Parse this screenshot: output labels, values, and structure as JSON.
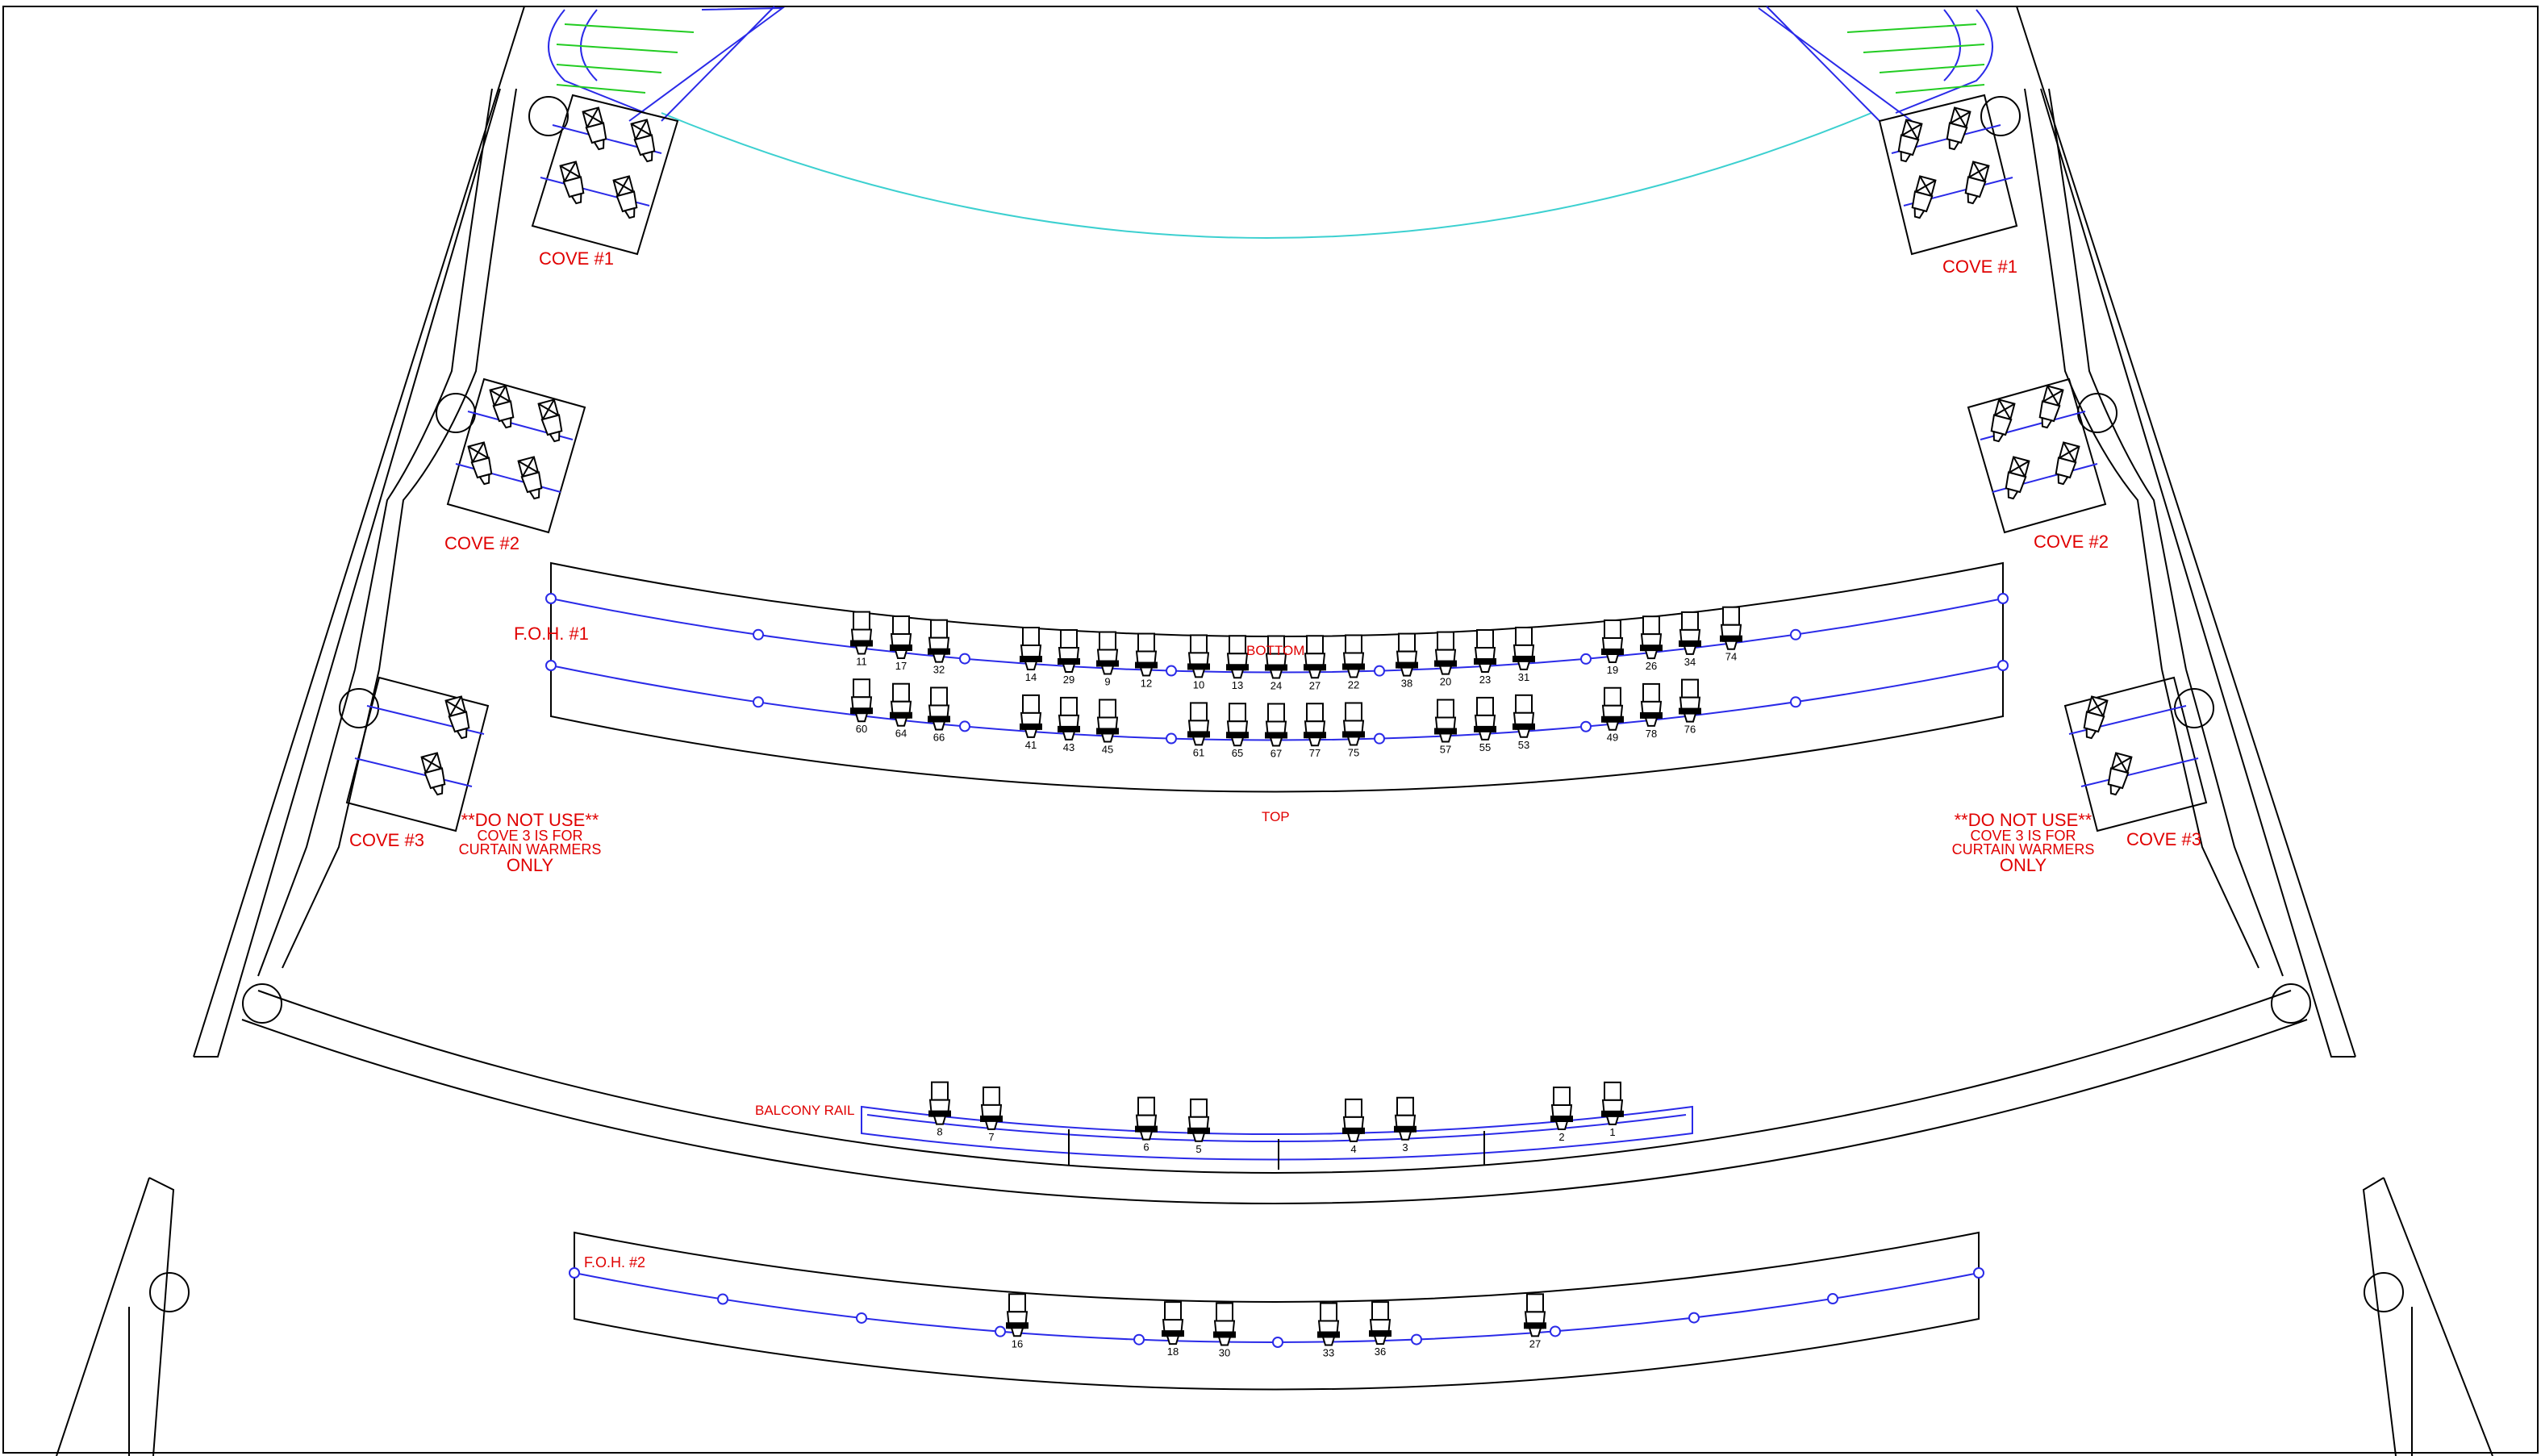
{
  "labels": {
    "cove1_left": "COVE #1",
    "cove1_right": "COVE #1",
    "cove2_left": "COVE #2",
    "cove2_right": "COVE #2",
    "cove3_left": "COVE #3",
    "cove3_right": "COVE #3",
    "foh1": "F.O.H. #1",
    "foh2": "F.O.H. #2",
    "bottom": "BOTTOM",
    "top": "TOP",
    "balcony_rail": "BALCONY RAIL",
    "warning_left": [
      "**DO NOT USE**",
      "COVE 3 IS FOR",
      "CURTAIN WARMERS",
      "ONLY"
    ],
    "warning_right": [
      "**DO NOT USE**",
      "COVE 3 IS FOR",
      "CURTAIN WARMERS",
      "ONLY"
    ]
  },
  "fixtures": {
    "foh1_bottom": [
      "11",
      "17",
      "32",
      "14",
      "29",
      "9",
      "12",
      "10",
      "13",
      "24",
      "27",
      "22",
      "38",
      "20",
      "23",
      "31",
      "19",
      "26",
      "34",
      "74"
    ],
    "foh1_top": [
      "60",
      "64",
      "66",
      "41",
      "43",
      "45",
      "61",
      "65",
      "67",
      "77",
      "75",
      "57",
      "55",
      "53",
      "49",
      "78",
      "76"
    ],
    "balcony_rail": [
      "8",
      "7",
      "6",
      "5",
      "4",
      "3",
      "2",
      "1"
    ],
    "foh2": [
      "16",
      "18",
      "30",
      "33",
      "36",
      "27"
    ]
  },
  "colors": {
    "label": "#e00000",
    "pipe": "#2a2ae8",
    "outline": "#000000",
    "stage_arc": "#3cd0d0",
    "steps": "#22cc22"
  }
}
